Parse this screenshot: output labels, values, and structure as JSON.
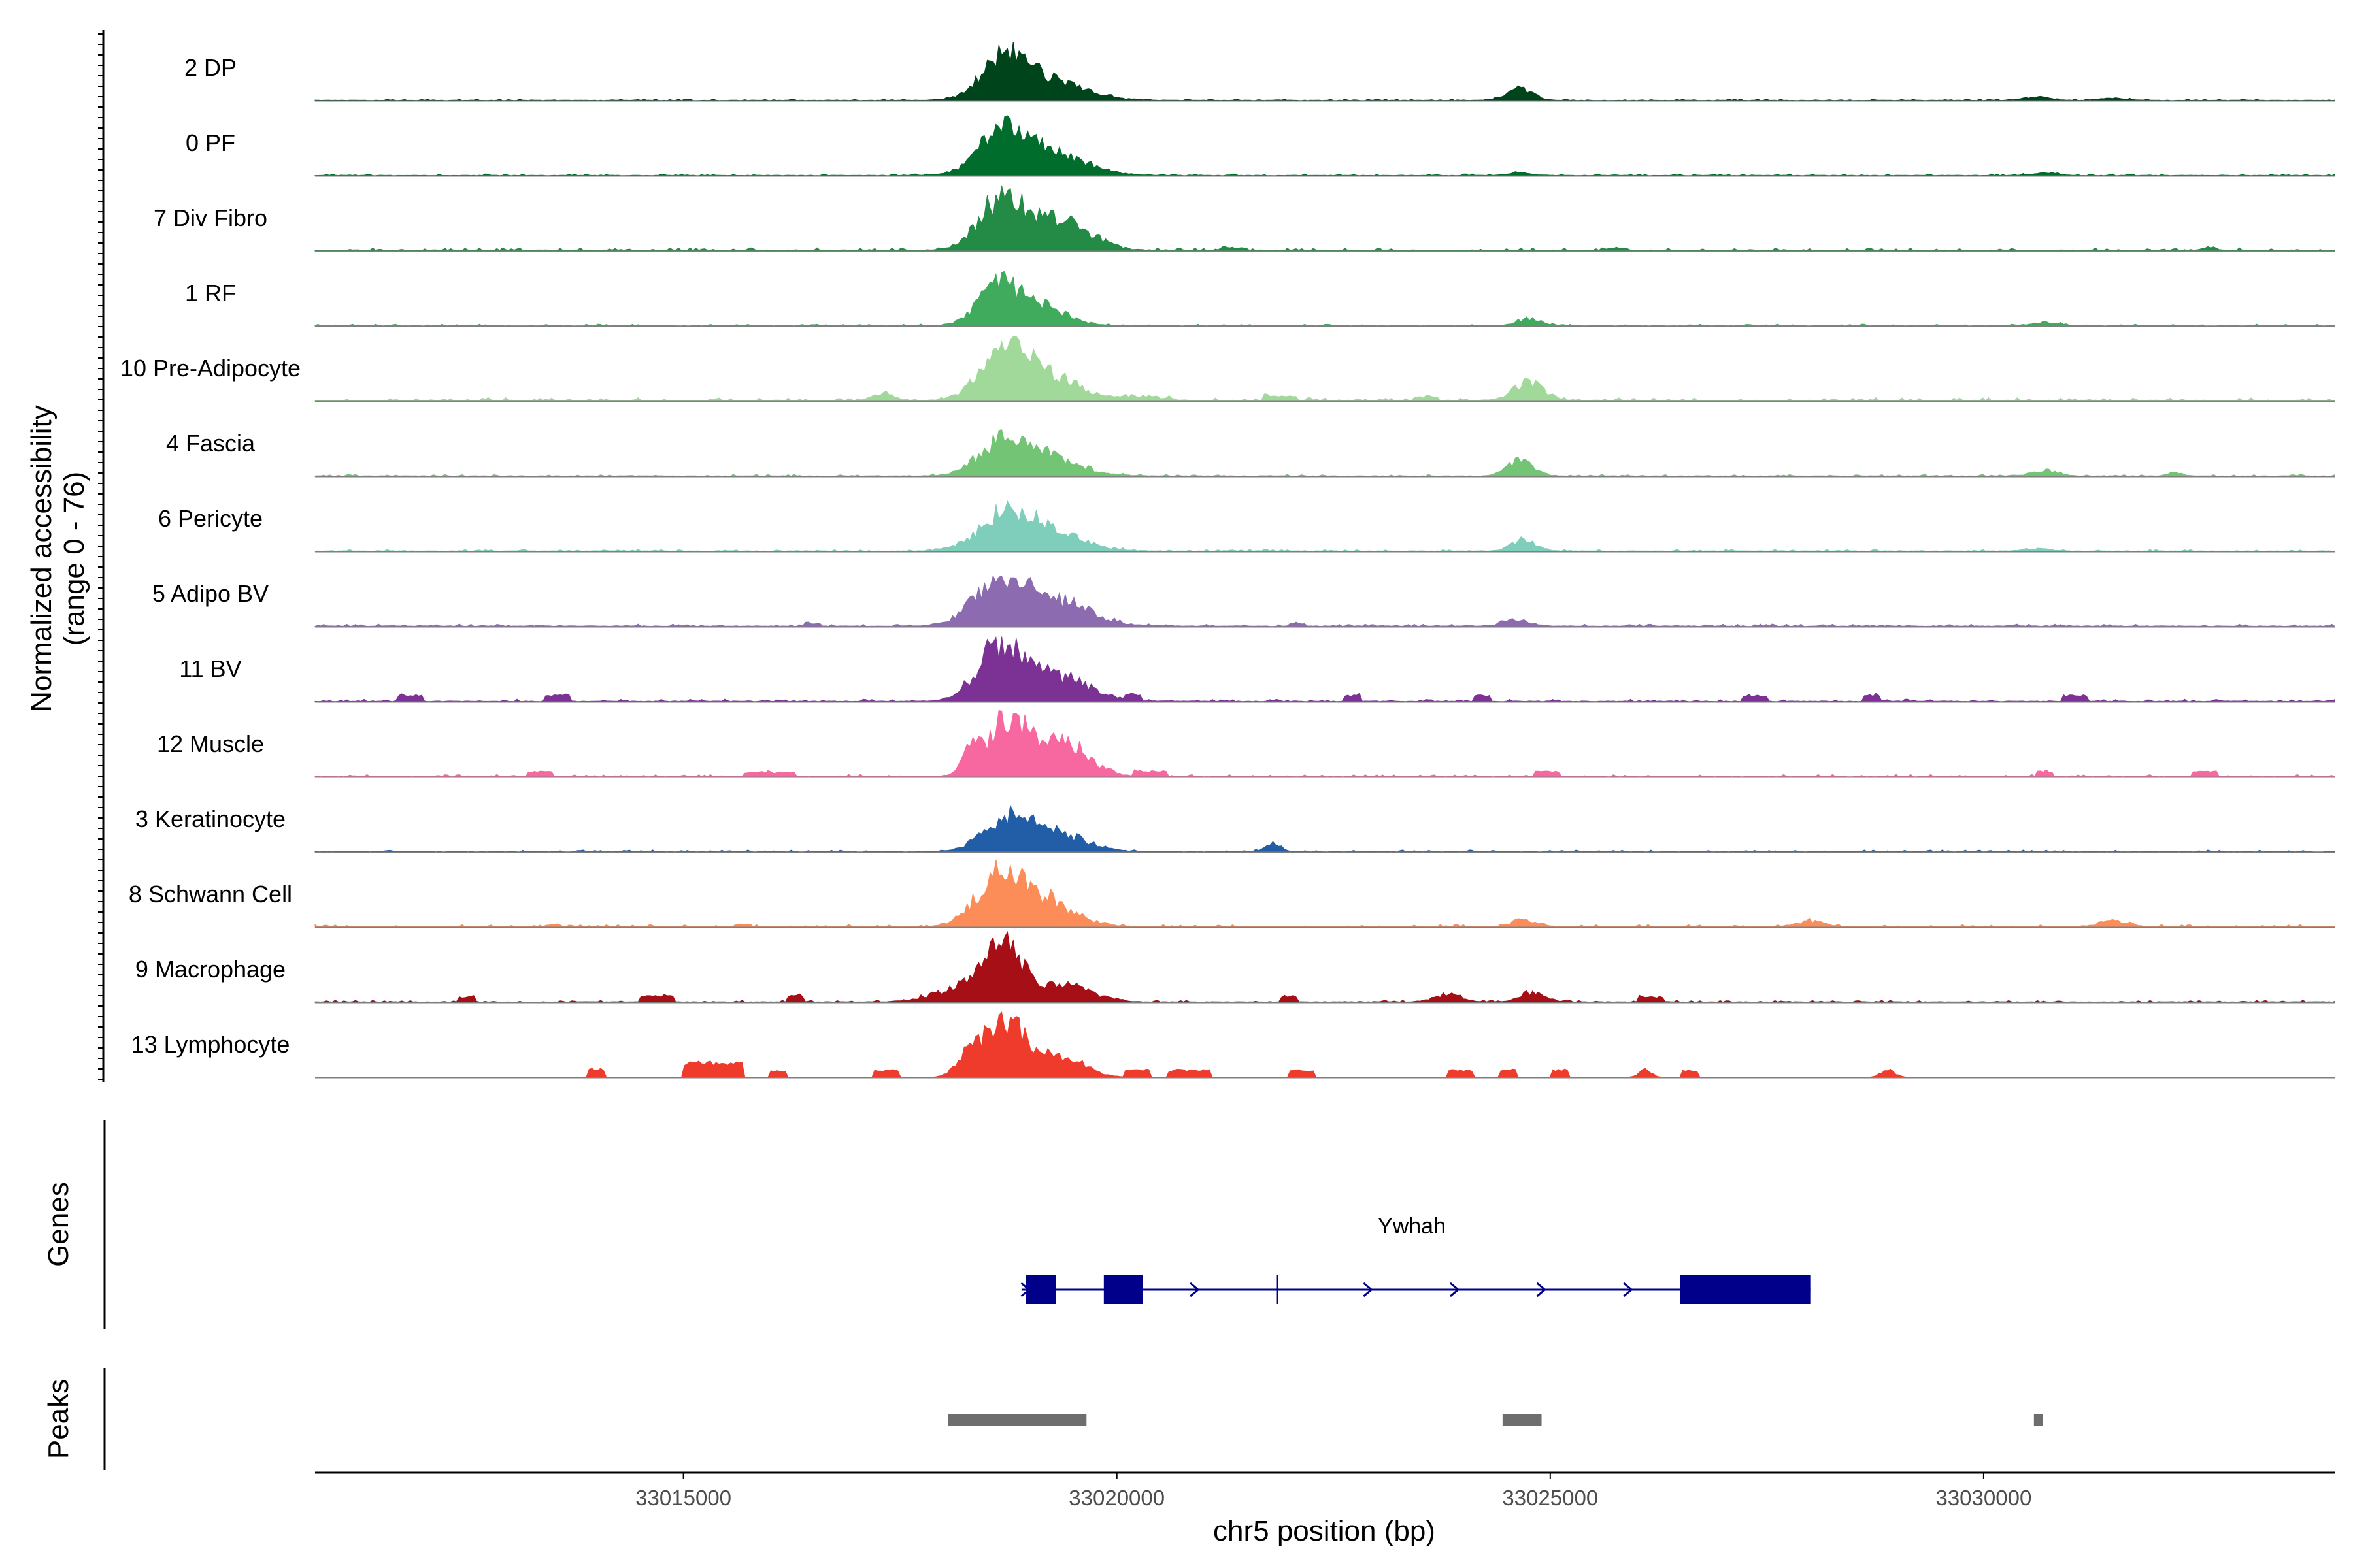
{
  "chart_data": {
    "type": "area",
    "title": "",
    "ylabel_line1": "Normalized accessibility",
    "ylabel_line2": "(range 0 - 76)",
    "ylim": [
      0,
      76
    ],
    "xlabel": "chr5 position (bp)",
    "xlim": [
      33010750,
      33034050
    ],
    "x_ticks": [
      33015000,
      33020000,
      33025000,
      33030000
    ],
    "x_tick_labels": [
      "33015000",
      "33020000",
      "33025000",
      "33030000"
    ],
    "tracks": [
      {
        "name": "2 DP",
        "color": "#00441b",
        "peaks": [
          [
            33018700,
            48,
            260
          ],
          [
            33019200,
            24,
            420
          ],
          [
            33024650,
            16,
            140
          ],
          [
            33030600,
            4,
            150
          ],
          [
            33031500,
            3,
            150
          ]
        ],
        "noise": [
          0.2,
          1.5
        ],
        "blocks": []
      },
      {
        "name": "0 PF",
        "color": "#006d2c",
        "peaks": [
          [
            33018700,
            52,
            280
          ],
          [
            33019200,
            28,
            420
          ],
          [
            33024650,
            3,
            150
          ],
          [
            33030700,
            3,
            150
          ]
        ],
        "noise": [
          0.2,
          1.8
        ],
        "blocks": []
      },
      {
        "name": "7 Div Fibro",
        "color": "#238b45",
        "peaks": [
          [
            33018650,
            58,
            260
          ],
          [
            33019300,
            38,
            360
          ],
          [
            33032600,
            4,
            80
          ]
        ],
        "noise": [
          0.4,
          3.0
        ],
        "blocks": [
          [
            33021200,
            33021500,
            3
          ],
          [
            33025600,
            33025900,
            2
          ]
        ]
      },
      {
        "name": "1 RF",
        "color": "#41ab5d",
        "peaks": [
          [
            33018650,
            48,
            240
          ],
          [
            33019100,
            24,
            300
          ],
          [
            33024750,
            9,
            140
          ],
          [
            33030700,
            4,
            150
          ]
        ],
        "noise": [
          0.2,
          1.8
        ],
        "blocks": []
      },
      {
        "name": "10 Pre-Adipocyte",
        "color": "#a1d99b",
        "peaks": [
          [
            33018700,
            58,
            280
          ],
          [
            33019200,
            30,
            360
          ],
          [
            33024750,
            24,
            170
          ],
          [
            33017300,
            9,
            120
          ],
          [
            33020300,
            6,
            200
          ]
        ],
        "noise": [
          0.4,
          3.5
        ],
        "blocks": [
          [
            33021700,
            33022100,
            5
          ],
          [
            33023400,
            33023700,
            4
          ]
        ]
      },
      {
        "name": "4 Fascia",
        "color": "#74c476",
        "peaks": [
          [
            33018700,
            42,
            280
          ],
          [
            33019200,
            22,
            380
          ],
          [
            33024650,
            20,
            140
          ],
          [
            33030700,
            7,
            150
          ],
          [
            33032200,
            4,
            80
          ]
        ],
        "noise": [
          0.2,
          2.0
        ],
        "blocks": []
      },
      {
        "name": "6 Pericyte",
        "color": "#7fcdbb",
        "peaks": [
          [
            33018700,
            42,
            300
          ],
          [
            33019200,
            24,
            380
          ],
          [
            33024700,
            14,
            140
          ],
          [
            33030600,
            3,
            150
          ]
        ],
        "noise": [
          0.2,
          2.0
        ],
        "blocks": []
      },
      {
        "name": "5 Adipo BV",
        "color": "#8c6bb1",
        "peaks": [
          [
            33018650,
            56,
            300
          ],
          [
            33019300,
            32,
            380
          ],
          [
            33024600,
            9,
            140
          ]
        ],
        "noise": [
          0.3,
          2.5
        ],
        "blocks": [
          [
            33016400,
            33016600,
            3
          ],
          [
            33022000,
            33022200,
            3
          ]
        ]
      },
      {
        "name": "11 BV",
        "color": "#7b3294",
        "peaks": [
          [
            33018650,
            68,
            260
          ],
          [
            33019300,
            32,
            360
          ]
        ],
        "noise": [
          0.2,
          2.5
        ],
        "blocks": [
          [
            33011700,
            33012000,
            7
          ],
          [
            33013400,
            33013700,
            7
          ],
          [
            33020100,
            33020300,
            7
          ],
          [
            33022600,
            33022800,
            7
          ],
          [
            33024100,
            33024300,
            7
          ],
          [
            33027200,
            33027500,
            7
          ],
          [
            33028600,
            33028800,
            7
          ],
          [
            33030900,
            33031200,
            7
          ]
        ]
      },
      {
        "name": "12 Muscle",
        "color": "#f768a1",
        "peaks": [
          [
            33018750,
            72,
            260
          ],
          [
            33019400,
            42,
            280
          ],
          [
            33018300,
            26,
            80
          ]
        ],
        "noise": [
          0.2,
          2.5
        ],
        "blocks": [
          [
            33013200,
            33013500,
            6
          ],
          [
            33015700,
            33016300,
            5
          ],
          [
            33020200,
            33020600,
            6
          ],
          [
            33024800,
            33025100,
            6
          ],
          [
            33030600,
            33030800,
            6
          ],
          [
            33032400,
            33032700,
            6
          ]
        ]
      },
      {
        "name": "3 Keratinocyte",
        "color": "#225ea8",
        "peaks": [
          [
            33018750,
            42,
            280
          ],
          [
            33019300,
            22,
            340
          ],
          [
            33021800,
            9,
            90
          ]
        ],
        "noise": [
          0.2,
          2.0
        ],
        "blocks": []
      },
      {
        "name": "8 Schwann Cell",
        "color": "#fc8d59",
        "peaks": [
          [
            33018650,
            62,
            260
          ],
          [
            33019200,
            32,
            320
          ],
          [
            33024700,
            10,
            130
          ],
          [
            33028000,
            7,
            150
          ],
          [
            33031500,
            7,
            160
          ]
        ],
        "noise": [
          0.3,
          2.5
        ],
        "blocks": [
          [
            33013400,
            33013600,
            2
          ],
          [
            33015600,
            33015800,
            3
          ]
        ]
      },
      {
        "name": "9 Macrophage",
        "color": "#a50f15",
        "peaks": [
          [
            33018700,
            68,
            220
          ],
          [
            33018200,
            18,
            300
          ],
          [
            33019400,
            22,
            300
          ],
          [
            33024800,
            12,
            140
          ],
          [
            33023800,
            10,
            150
          ]
        ],
        "noise": [
          0.2,
          2.0
        ],
        "blocks": [
          [
            33012400,
            33012600,
            6
          ],
          [
            33014500,
            33014900,
            7
          ],
          [
            33016200,
            33016400,
            8
          ],
          [
            33021900,
            33022100,
            7
          ],
          [
            33026000,
            33026300,
            6
          ]
        ]
      },
      {
        "name": "13 Lymphocyte",
        "color": "#ef3b2c",
        "peaks": [
          [
            33018700,
            76,
            220
          ],
          [
            33018300,
            28,
            140
          ],
          [
            33019300,
            30,
            280
          ],
          [
            33026100,
            12,
            70
          ],
          [
            33028900,
            10,
            80
          ]
        ],
        "noise": [
          0.0,
          0.0
        ],
        "blocks": [
          [
            33015000,
            33015700,
            18
          ],
          [
            33013900,
            33014100,
            10
          ],
          [
            33016000,
            33016200,
            8
          ],
          [
            33017200,
            33017500,
            9
          ],
          [
            33020100,
            33020400,
            9
          ],
          [
            33020600,
            33021100,
            9
          ],
          [
            33022000,
            33022300,
            9
          ],
          [
            33023800,
            33024100,
            9
          ],
          [
            33024400,
            33024600,
            9
          ],
          [
            33025000,
            33025200,
            9
          ],
          [
            33026500,
            33026700,
            8
          ]
        ]
      }
    ],
    "genes_label": "Genes",
    "gene": {
      "name": "Ywhah",
      "start": 33018900,
      "end": 33028000,
      "strand": "+",
      "exons": [
        [
          33018950,
          33019300
        ],
        [
          33019850,
          33020300
        ],
        [
          33026500,
          33028000
        ]
      ],
      "color": "#00008b"
    },
    "peaks_label": "Peaks",
    "peak_regions": [
      [
        33018050,
        33019650
      ],
      [
        33024450,
        33024900
      ],
      [
        33030580,
        33030680
      ]
    ],
    "peak_color": "#6e6e6e"
  }
}
